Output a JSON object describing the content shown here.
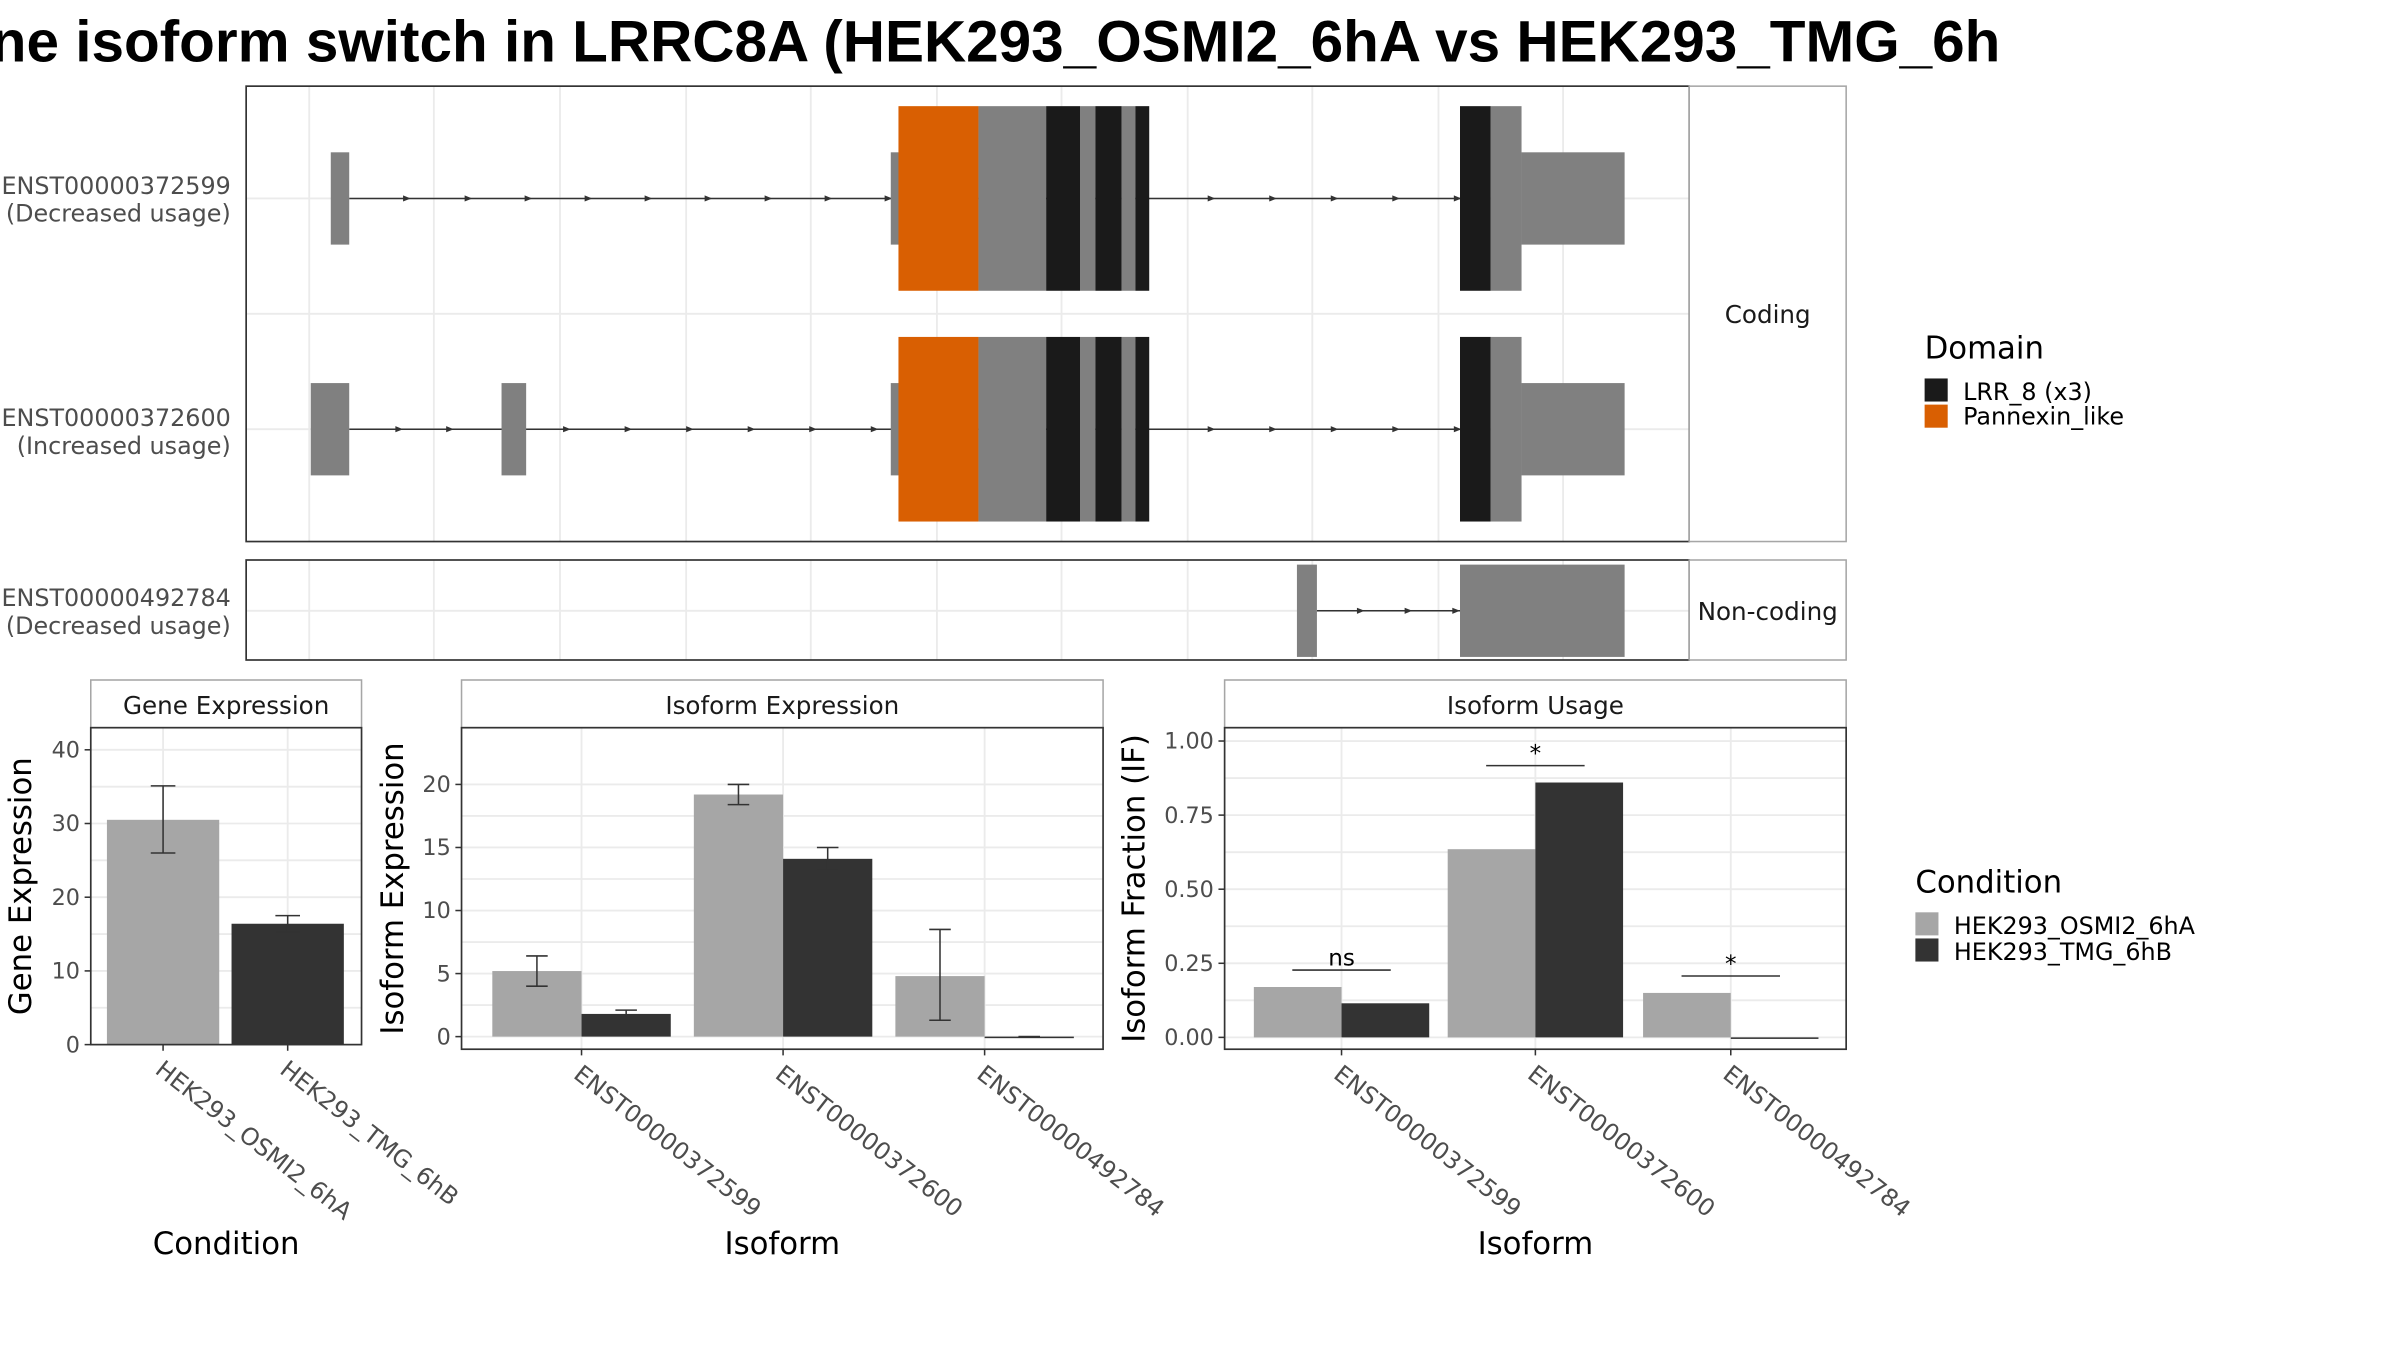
{
  "title": "ne isoform switch in LRRC8A (HEK293_OSMI2_6hA vs HEK293_TMG_6h",
  "colors": {
    "gray_exon": "#808080",
    "lrr8": "#1a1a1a",
    "pannexin": "#d95f02",
    "osmi2": "#a6a6a6",
    "tmg": "#333333"
  },
  "transcripts": {
    "coding_label": "Coding",
    "noncoding_label": "Non-coding",
    "rows": [
      {
        "id": "ENST00000372599",
        "note": "(Decreased usage)",
        "group": "coding"
      },
      {
        "id": "ENST00000372600",
        "note": "(Increased usage)",
        "group": "coding"
      },
      {
        "id": "ENST00000492784",
        "note": "(Decreased usage)",
        "group": "noncoding"
      }
    ]
  },
  "domain_legend": {
    "title": "Domain",
    "items": [
      {
        "label": "LRR_8 (x3)",
        "color": "#1a1a1a"
      },
      {
        "label": "Pannexin_like",
        "color": "#d95f02"
      }
    ]
  },
  "condition_legend": {
    "title": "Condition",
    "items": [
      {
        "label": "HEK293_OSMI2_6hA",
        "color": "#a6a6a6"
      },
      {
        "label": "HEK293_TMG_6hB",
        "color": "#333333"
      }
    ]
  },
  "chart_data": [
    {
      "type": "bar",
      "title": "Gene Expression",
      "xlabel": "Condition",
      "ylabel": "Gene Expression",
      "categories": [
        "HEK293_OSMI2_6hA",
        "HEK293_TMG_6hB"
      ],
      "values": [
        30.5,
        16.4
      ],
      "err_low": [
        26.0,
        15.3
      ],
      "err_high": [
        35.1,
        17.5
      ],
      "ylim": [
        0,
        43
      ],
      "yticks": [
        0,
        10,
        20,
        30,
        40
      ],
      "grid": true
    },
    {
      "type": "bar",
      "title": "Isoform Expression",
      "xlabel": "Isoform",
      "ylabel": "Isoform Expression",
      "categories": [
        "ENST00000372599",
        "ENST00000372600",
        "ENST00000492784"
      ],
      "series": [
        {
          "name": "HEK293_OSMI2_6hA",
          "values": [
            5.2,
            19.2,
            4.8
          ],
          "err_low": [
            4.0,
            18.4,
            1.3
          ],
          "err_high": [
            6.4,
            20.0,
            8.5
          ]
        },
        {
          "name": "HEK293_TMG_6hB",
          "values": [
            1.8,
            14.1,
            0.0
          ],
          "err_low": [
            1.5,
            13.2,
            0.0
          ],
          "err_high": [
            2.1,
            15.0,
            0.0
          ]
        }
      ],
      "ylim": [
        -1,
        24.5
      ],
      "yticks": [
        0,
        5,
        10,
        15,
        20
      ],
      "grid": true
    },
    {
      "type": "bar",
      "title": "Isoform Usage",
      "xlabel": "Isoform",
      "ylabel": "Isoform Fraction (IF)",
      "categories": [
        "ENST00000372599",
        "ENST00000372600",
        "ENST00000492784"
      ],
      "series": [
        {
          "name": "HEK293_OSMI2_6hA",
          "values": [
            0.17,
            0.635,
            0.15
          ]
        },
        {
          "name": "HEK293_TMG_6hB",
          "values": [
            0.115,
            0.86,
            0.0
          ]
        }
      ],
      "significance": [
        "ns",
        "*",
        "*"
      ],
      "ylim": [
        -0.04,
        1.045
      ],
      "yticks": [
        "0.00",
        "0.25",
        "0.50",
        "0.75",
        "1.00"
      ],
      "grid": true
    }
  ]
}
